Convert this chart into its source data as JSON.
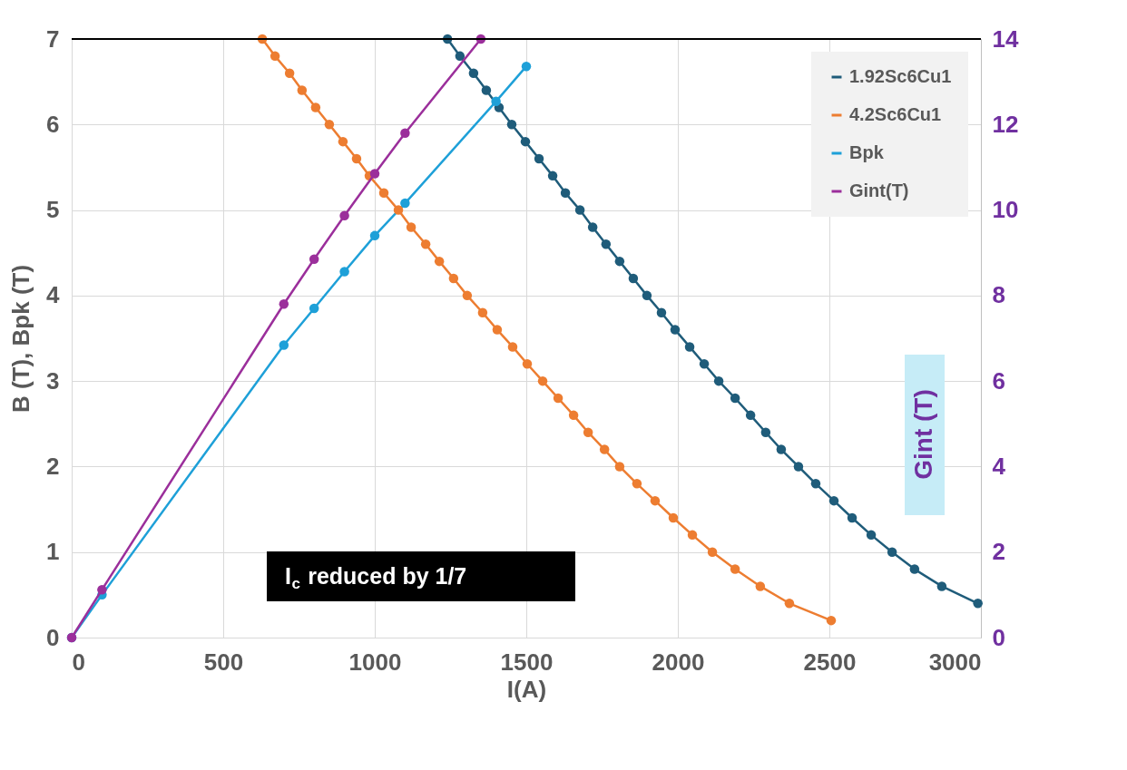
{
  "chart_data": {
    "type": "line",
    "xlabel": "I(A)",
    "ylabel": "B (T), Bpk (T)",
    "y2label": "Gint (T)",
    "xlim": [
      0,
      3000
    ],
    "xticks": [
      0,
      500,
      1000,
      1500,
      2000,
      2500,
      3000
    ],
    "ylim": [
      0,
      7
    ],
    "yticks": [
      0,
      1,
      2,
      3,
      4,
      5,
      6,
      7
    ],
    "y2lim": [
      0,
      14
    ],
    "y2ticks": [
      0,
      2,
      4,
      6,
      8,
      10,
      12,
      14
    ],
    "grid": true,
    "legend": "top right",
    "marker": "circle",
    "line_style": "solid",
    "annotations": [
      "I$_{c}$ reduced by 1/7"
    ],
    "series": [
      {
        "name": "1.92Sc6Cu1",
        "color": "#1f5c7a",
        "x": [
          1240,
          1281,
          1326,
          1368,
          1410,
          1452,
          1497,
          1542,
          1587,
          1629,
          1677,
          1719,
          1763,
          1808,
          1853,
          1898,
          1946,
          1991,
          2039,
          2087,
          2135,
          2189,
          2240,
          2290,
          2341,
          2398,
          2455,
          2515,
          2575,
          2638,
          2707,
          2781,
          2871,
          2990
        ],
        "values": [
          7,
          6.8,
          6.6,
          6.4,
          6.2,
          6.0,
          5.8,
          5.6,
          5.4,
          5.2,
          5.0,
          4.8,
          4.6,
          4.4,
          4.2,
          4.0,
          3.8,
          3.6,
          3.4,
          3.2,
          3.0,
          2.8,
          2.6,
          2.4,
          2.2,
          2.0,
          1.8,
          1.6,
          1.4,
          1.2,
          1.0,
          0.8,
          0.6,
          0.4
        ]
      },
      {
        "name": "4.2Sc6Cu1",
        "color": "#ed7d31",
        "x": [
          629,
          671,
          719,
          760,
          805,
          850,
          895,
          940,
          982,
          1030,
          1078,
          1120,
          1168,
          1213,
          1260,
          1305,
          1356,
          1404,
          1455,
          1503,
          1554,
          1605,
          1656,
          1704,
          1758,
          1808,
          1865,
          1925,
          1985,
          2048,
          2114,
          2189,
          2272,
          2368,
          2506
        ],
        "values": [
          7,
          6.8,
          6.6,
          6.4,
          6.2,
          6.0,
          5.8,
          5.6,
          5.4,
          5.2,
          5.0,
          4.8,
          4.6,
          4.4,
          4.2,
          4.0,
          3.8,
          3.6,
          3.4,
          3.2,
          3.0,
          2.8,
          2.6,
          2.4,
          2.2,
          2.0,
          1.8,
          1.6,
          1.4,
          1.2,
          1.0,
          0.8,
          0.6,
          0.4,
          0.2
        ]
      },
      {
        "name": "Bpk",
        "color": "#1ea0d8",
        "x": [
          0,
          100,
          700,
          800,
          900,
          1000,
          1100,
          1400,
          1500
        ],
        "values": [
          0,
          0.5,
          3.42,
          3.85,
          4.28,
          4.7,
          5.08,
          6.27,
          6.68
        ]
      },
      {
        "name": "Gint(T)",
        "color": "#9b2f9b",
        "axis": "y2",
        "x": [
          0,
          100,
          700,
          800,
          900,
          1000,
          1100,
          1350
        ],
        "values": [
          0,
          1.12,
          7.8,
          8.85,
          9.87,
          10.85,
          11.8,
          14
        ]
      }
    ]
  }
}
